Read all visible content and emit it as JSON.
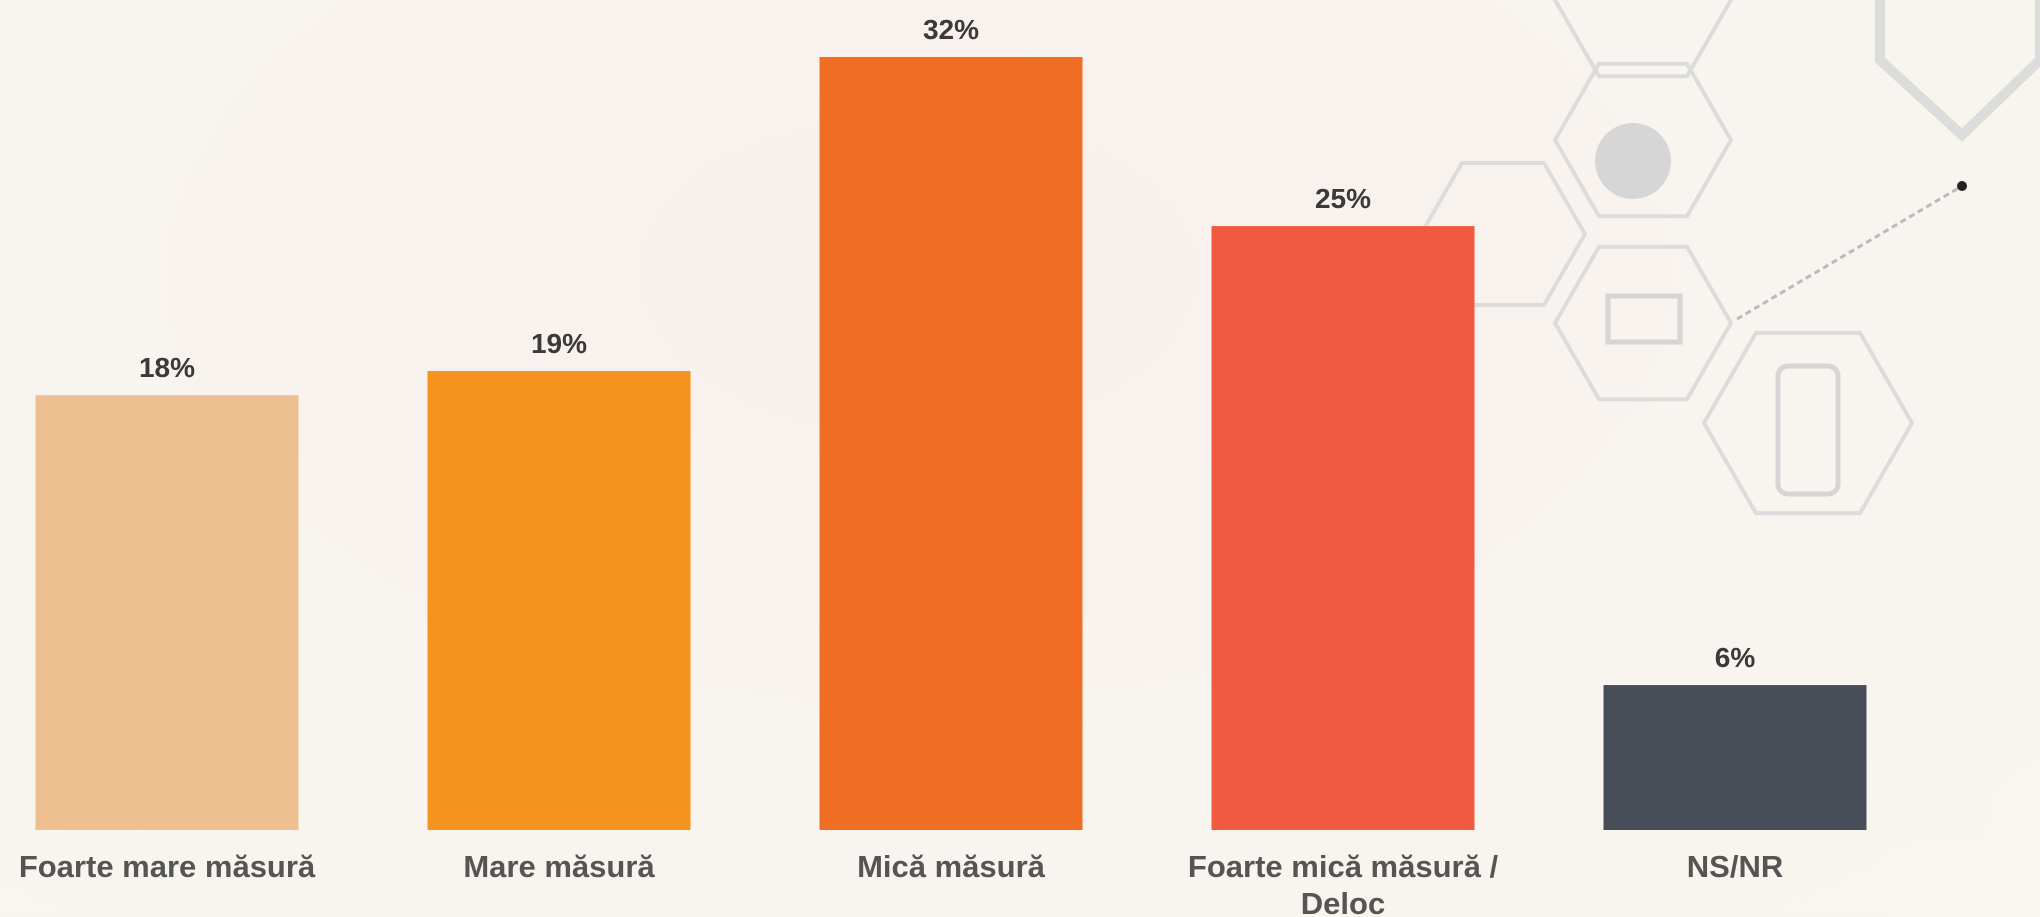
{
  "chart_data": {
    "type": "bar",
    "categories": [
      "Foarte mare măsură",
      "Mare măsură",
      "Mică măsură",
      "Foarte mică măsură / Deloc",
      "NS/NR"
    ],
    "values": [
      18,
      19,
      32,
      25,
      6
    ],
    "value_labels": [
      "18%",
      "19%",
      "32%",
      "25%",
      "6%"
    ],
    "colors": [
      "#eebf90",
      "#f5931f",
      "#f06e24",
      "#f05a40",
      "#474e58"
    ]
  }
}
